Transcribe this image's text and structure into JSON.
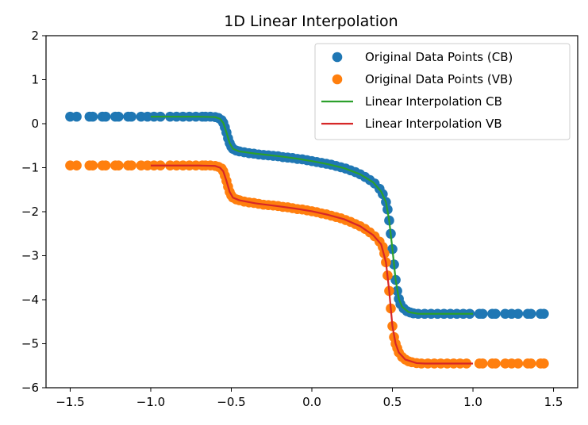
{
  "chart_data": {
    "type": "line",
    "title": "1D Linear Interpolation",
    "xlabel": "",
    "ylabel": "",
    "xlim": [
      -1.65,
      1.65
    ],
    "ylim": [
      -6,
      2
    ],
    "xticks": [
      -1.5,
      -1.0,
      -0.5,
      0.0,
      0.5,
      1.0,
      1.5
    ],
    "xtick_labels": [
      "−1.5",
      "−1.0",
      "−0.5",
      "0.0",
      "0.5",
      "1.0",
      "1.5"
    ],
    "yticks": [
      -6,
      -5,
      -4,
      -3,
      -2,
      -1,
      0,
      1,
      2
    ],
    "ytick_labels": [
      "−6",
      "−5",
      "−4",
      "−3",
      "−2",
      "−1",
      "0",
      "1",
      "2"
    ],
    "grid": false,
    "legend_position": "top-right",
    "series": [
      {
        "name": "Original Data Points (CB)",
        "kind": "scatter",
        "color": "#1f77b4",
        "points": [
          [
            -1.5,
            0.16
          ],
          [
            -1.46,
            0.16
          ],
          [
            -1.38,
            0.16
          ],
          [
            -1.36,
            0.16
          ],
          [
            -1.3,
            0.16
          ],
          [
            -1.28,
            0.16
          ],
          [
            -1.22,
            0.16
          ],
          [
            -1.2,
            0.16
          ],
          [
            -1.14,
            0.16
          ],
          [
            -1.12,
            0.16
          ],
          [
            -1.06,
            0.16
          ],
          [
            -1.02,
            0.16
          ],
          [
            -0.98,
            0.16
          ],
          [
            -0.94,
            0.16
          ],
          [
            -0.88,
            0.16
          ],
          [
            -0.84,
            0.16
          ],
          [
            -0.8,
            0.16
          ],
          [
            -0.76,
            0.16
          ],
          [
            -0.72,
            0.16
          ],
          [
            -0.68,
            0.16
          ],
          [
            -0.66,
            0.16
          ],
          [
            -0.63,
            0.16
          ],
          [
            -0.6,
            0.15
          ],
          [
            -0.58,
            0.13
          ],
          [
            -0.56,
            0.08
          ],
          [
            -0.55,
            0.02
          ],
          [
            -0.54,
            -0.08
          ],
          [
            -0.53,
            -0.2
          ],
          [
            -0.52,
            -0.33
          ],
          [
            -0.51,
            -0.44
          ],
          [
            -0.5,
            -0.52
          ],
          [
            -0.49,
            -0.57
          ],
          [
            -0.47,
            -0.61
          ],
          [
            -0.45,
            -0.63
          ],
          [
            -0.42,
            -0.65
          ],
          [
            -0.39,
            -0.67
          ],
          [
            -0.36,
            -0.68
          ],
          [
            -0.33,
            -0.7
          ],
          [
            -0.3,
            -0.71
          ],
          [
            -0.27,
            -0.72
          ],
          [
            -0.24,
            -0.73
          ],
          [
            -0.21,
            -0.74
          ],
          [
            -0.18,
            -0.76
          ],
          [
            -0.15,
            -0.77
          ],
          [
            -0.12,
            -0.78
          ],
          [
            -0.09,
            -0.8
          ],
          [
            -0.06,
            -0.81
          ],
          [
            -0.03,
            -0.83
          ],
          [
            0.0,
            -0.85
          ],
          [
            0.03,
            -0.87
          ],
          [
            0.06,
            -0.89
          ],
          [
            0.09,
            -0.91
          ],
          [
            0.12,
            -0.93
          ],
          [
            0.15,
            -0.96
          ],
          [
            0.18,
            -0.99
          ],
          [
            0.21,
            -1.02
          ],
          [
            0.24,
            -1.06
          ],
          [
            0.27,
            -1.1
          ],
          [
            0.3,
            -1.15
          ],
          [
            0.33,
            -1.21
          ],
          [
            0.36,
            -1.28
          ],
          [
            0.39,
            -1.36
          ],
          [
            0.42,
            -1.48
          ],
          [
            0.44,
            -1.6
          ],
          [
            0.46,
            -1.78
          ],
          [
            0.47,
            -1.95
          ],
          [
            0.48,
            -2.2
          ],
          [
            0.49,
            -2.5
          ],
          [
            0.5,
            -2.85
          ],
          [
            0.51,
            -3.2
          ],
          [
            0.52,
            -3.55
          ],
          [
            0.53,
            -3.8
          ],
          [
            0.54,
            -3.98
          ],
          [
            0.55,
            -4.1
          ],
          [
            0.57,
            -4.2
          ],
          [
            0.59,
            -4.26
          ],
          [
            0.61,
            -4.29
          ],
          [
            0.63,
            -4.31
          ],
          [
            0.66,
            -4.32
          ],
          [
            0.7,
            -4.32
          ],
          [
            0.74,
            -4.32
          ],
          [
            0.78,
            -4.32
          ],
          [
            0.82,
            -4.32
          ],
          [
            0.86,
            -4.32
          ],
          [
            0.9,
            -4.32
          ],
          [
            0.94,
            -4.32
          ],
          [
            0.98,
            -4.32
          ],
          [
            1.04,
            -4.32
          ],
          [
            1.06,
            -4.32
          ],
          [
            1.12,
            -4.32
          ],
          [
            1.14,
            -4.32
          ],
          [
            1.2,
            -4.32
          ],
          [
            1.24,
            -4.32
          ],
          [
            1.28,
            -4.32
          ],
          [
            1.34,
            -4.32
          ],
          [
            1.36,
            -4.32
          ],
          [
            1.42,
            -4.32
          ],
          [
            1.44,
            -4.32
          ]
        ]
      },
      {
        "name": "Original Data Points (VB)",
        "kind": "scatter",
        "color": "#ff7f0e",
        "points": [
          [
            -1.5,
            -0.95
          ],
          [
            -1.46,
            -0.95
          ],
          [
            -1.38,
            -0.95
          ],
          [
            -1.36,
            -0.95
          ],
          [
            -1.3,
            -0.95
          ],
          [
            -1.28,
            -0.95
          ],
          [
            -1.22,
            -0.95
          ],
          [
            -1.2,
            -0.95
          ],
          [
            -1.14,
            -0.95
          ],
          [
            -1.12,
            -0.95
          ],
          [
            -1.06,
            -0.95
          ],
          [
            -1.02,
            -0.95
          ],
          [
            -0.98,
            -0.95
          ],
          [
            -0.94,
            -0.95
          ],
          [
            -0.88,
            -0.95
          ],
          [
            -0.84,
            -0.95
          ],
          [
            -0.8,
            -0.95
          ],
          [
            -0.76,
            -0.95
          ],
          [
            -0.72,
            -0.95
          ],
          [
            -0.68,
            -0.95
          ],
          [
            -0.66,
            -0.95
          ],
          [
            -0.63,
            -0.95
          ],
          [
            -0.6,
            -0.96
          ],
          [
            -0.58,
            -0.98
          ],
          [
            -0.56,
            -1.02
          ],
          [
            -0.55,
            -1.08
          ],
          [
            -0.54,
            -1.18
          ],
          [
            -0.53,
            -1.3
          ],
          [
            -0.52,
            -1.43
          ],
          [
            -0.51,
            -1.55
          ],
          [
            -0.5,
            -1.63
          ],
          [
            -0.49,
            -1.68
          ],
          [
            -0.47,
            -1.72
          ],
          [
            -0.45,
            -1.74
          ],
          [
            -0.42,
            -1.77
          ],
          [
            -0.39,
            -1.79
          ],
          [
            -0.36,
            -1.8
          ],
          [
            -0.33,
            -1.82
          ],
          [
            -0.3,
            -1.84
          ],
          [
            -0.27,
            -1.85
          ],
          [
            -0.24,
            -1.86
          ],
          [
            -0.21,
            -1.87
          ],
          [
            -0.18,
            -1.89
          ],
          [
            -0.15,
            -1.9
          ],
          [
            -0.12,
            -1.92
          ],
          [
            -0.09,
            -1.94
          ],
          [
            -0.06,
            -1.95
          ],
          [
            -0.03,
            -1.97
          ],
          [
            0.0,
            -1.99
          ],
          [
            0.03,
            -2.01
          ],
          [
            0.06,
            -2.04
          ],
          [
            0.09,
            -2.06
          ],
          [
            0.12,
            -2.09
          ],
          [
            0.15,
            -2.12
          ],
          [
            0.18,
            -2.15
          ],
          [
            0.21,
            -2.19
          ],
          [
            0.24,
            -2.23
          ],
          [
            0.27,
            -2.28
          ],
          [
            0.3,
            -2.33
          ],
          [
            0.33,
            -2.39
          ],
          [
            0.36,
            -2.47
          ],
          [
            0.39,
            -2.56
          ],
          [
            0.42,
            -2.68
          ],
          [
            0.44,
            -2.8
          ],
          [
            0.45,
            -2.95
          ],
          [
            0.46,
            -3.15
          ],
          [
            0.47,
            -3.45
          ],
          [
            0.48,
            -3.8
          ],
          [
            0.49,
            -4.2
          ],
          [
            0.5,
            -4.6
          ],
          [
            0.51,
            -4.85
          ],
          [
            0.52,
            -5.0
          ],
          [
            0.53,
            -5.1
          ],
          [
            0.54,
            -5.2
          ],
          [
            0.56,
            -5.3
          ],
          [
            0.58,
            -5.36
          ],
          [
            0.6,
            -5.4
          ],
          [
            0.62,
            -5.42
          ],
          [
            0.65,
            -5.44
          ],
          [
            0.68,
            -5.45
          ],
          [
            0.72,
            -5.45
          ],
          [
            0.76,
            -5.45
          ],
          [
            0.8,
            -5.45
          ],
          [
            0.84,
            -5.45
          ],
          [
            0.88,
            -5.45
          ],
          [
            0.92,
            -5.45
          ],
          [
            0.96,
            -5.45
          ],
          [
            1.04,
            -5.45
          ],
          [
            1.06,
            -5.45
          ],
          [
            1.12,
            -5.45
          ],
          [
            1.14,
            -5.45
          ],
          [
            1.2,
            -5.45
          ],
          [
            1.24,
            -5.45
          ],
          [
            1.28,
            -5.45
          ],
          [
            1.34,
            -5.45
          ],
          [
            1.36,
            -5.45
          ],
          [
            1.42,
            -5.45
          ],
          [
            1.44,
            -5.45
          ]
        ]
      },
      {
        "name": "Linear Interpolation CB",
        "kind": "line",
        "color": "#2ca02c",
        "points": [
          [
            -1.0,
            0.16
          ],
          [
            -0.7,
            0.16
          ],
          [
            -0.6,
            0.15
          ],
          [
            -0.57,
            0.11
          ],
          [
            -0.55,
            0.02
          ],
          [
            -0.53,
            -0.2
          ],
          [
            -0.51,
            -0.44
          ],
          [
            -0.49,
            -0.57
          ],
          [
            -0.45,
            -0.63
          ],
          [
            -0.35,
            -0.68
          ],
          [
            -0.2,
            -0.74
          ],
          [
            -0.1,
            -0.79
          ],
          [
            0.0,
            -0.85
          ],
          [
            0.1,
            -0.92
          ],
          [
            0.2,
            -1.01
          ],
          [
            0.3,
            -1.15
          ],
          [
            0.38,
            -1.33
          ],
          [
            0.43,
            -1.54
          ],
          [
            0.46,
            -1.78
          ],
          [
            0.48,
            -2.2
          ],
          [
            0.5,
            -2.85
          ],
          [
            0.52,
            -3.55
          ],
          [
            0.54,
            -3.98
          ],
          [
            0.56,
            -4.16
          ],
          [
            0.6,
            -4.28
          ],
          [
            0.66,
            -4.32
          ],
          [
            1.0,
            -4.32
          ]
        ]
      },
      {
        "name": "Linear Interpolation VB",
        "kind": "line",
        "color": "#d62728",
        "points": [
          [
            -1.0,
            -0.95
          ],
          [
            -0.7,
            -0.95
          ],
          [
            -0.6,
            -0.96
          ],
          [
            -0.57,
            -1.0
          ],
          [
            -0.55,
            -1.08
          ],
          [
            -0.53,
            -1.3
          ],
          [
            -0.51,
            -1.55
          ],
          [
            -0.49,
            -1.68
          ],
          [
            -0.45,
            -1.74
          ],
          [
            -0.35,
            -1.81
          ],
          [
            -0.2,
            -1.88
          ],
          [
            -0.1,
            -1.93
          ],
          [
            0.0,
            -1.99
          ],
          [
            0.1,
            -2.07
          ],
          [
            0.2,
            -2.17
          ],
          [
            0.3,
            -2.33
          ],
          [
            0.38,
            -2.53
          ],
          [
            0.43,
            -2.74
          ],
          [
            0.46,
            -3.15
          ],
          [
            0.48,
            -3.8
          ],
          [
            0.5,
            -4.6
          ],
          [
            0.52,
            -5.0
          ],
          [
            0.54,
            -5.2
          ],
          [
            0.58,
            -5.36
          ],
          [
            0.65,
            -5.44
          ],
          [
            0.7,
            -5.45
          ],
          [
            1.0,
            -5.45
          ]
        ]
      }
    ]
  }
}
